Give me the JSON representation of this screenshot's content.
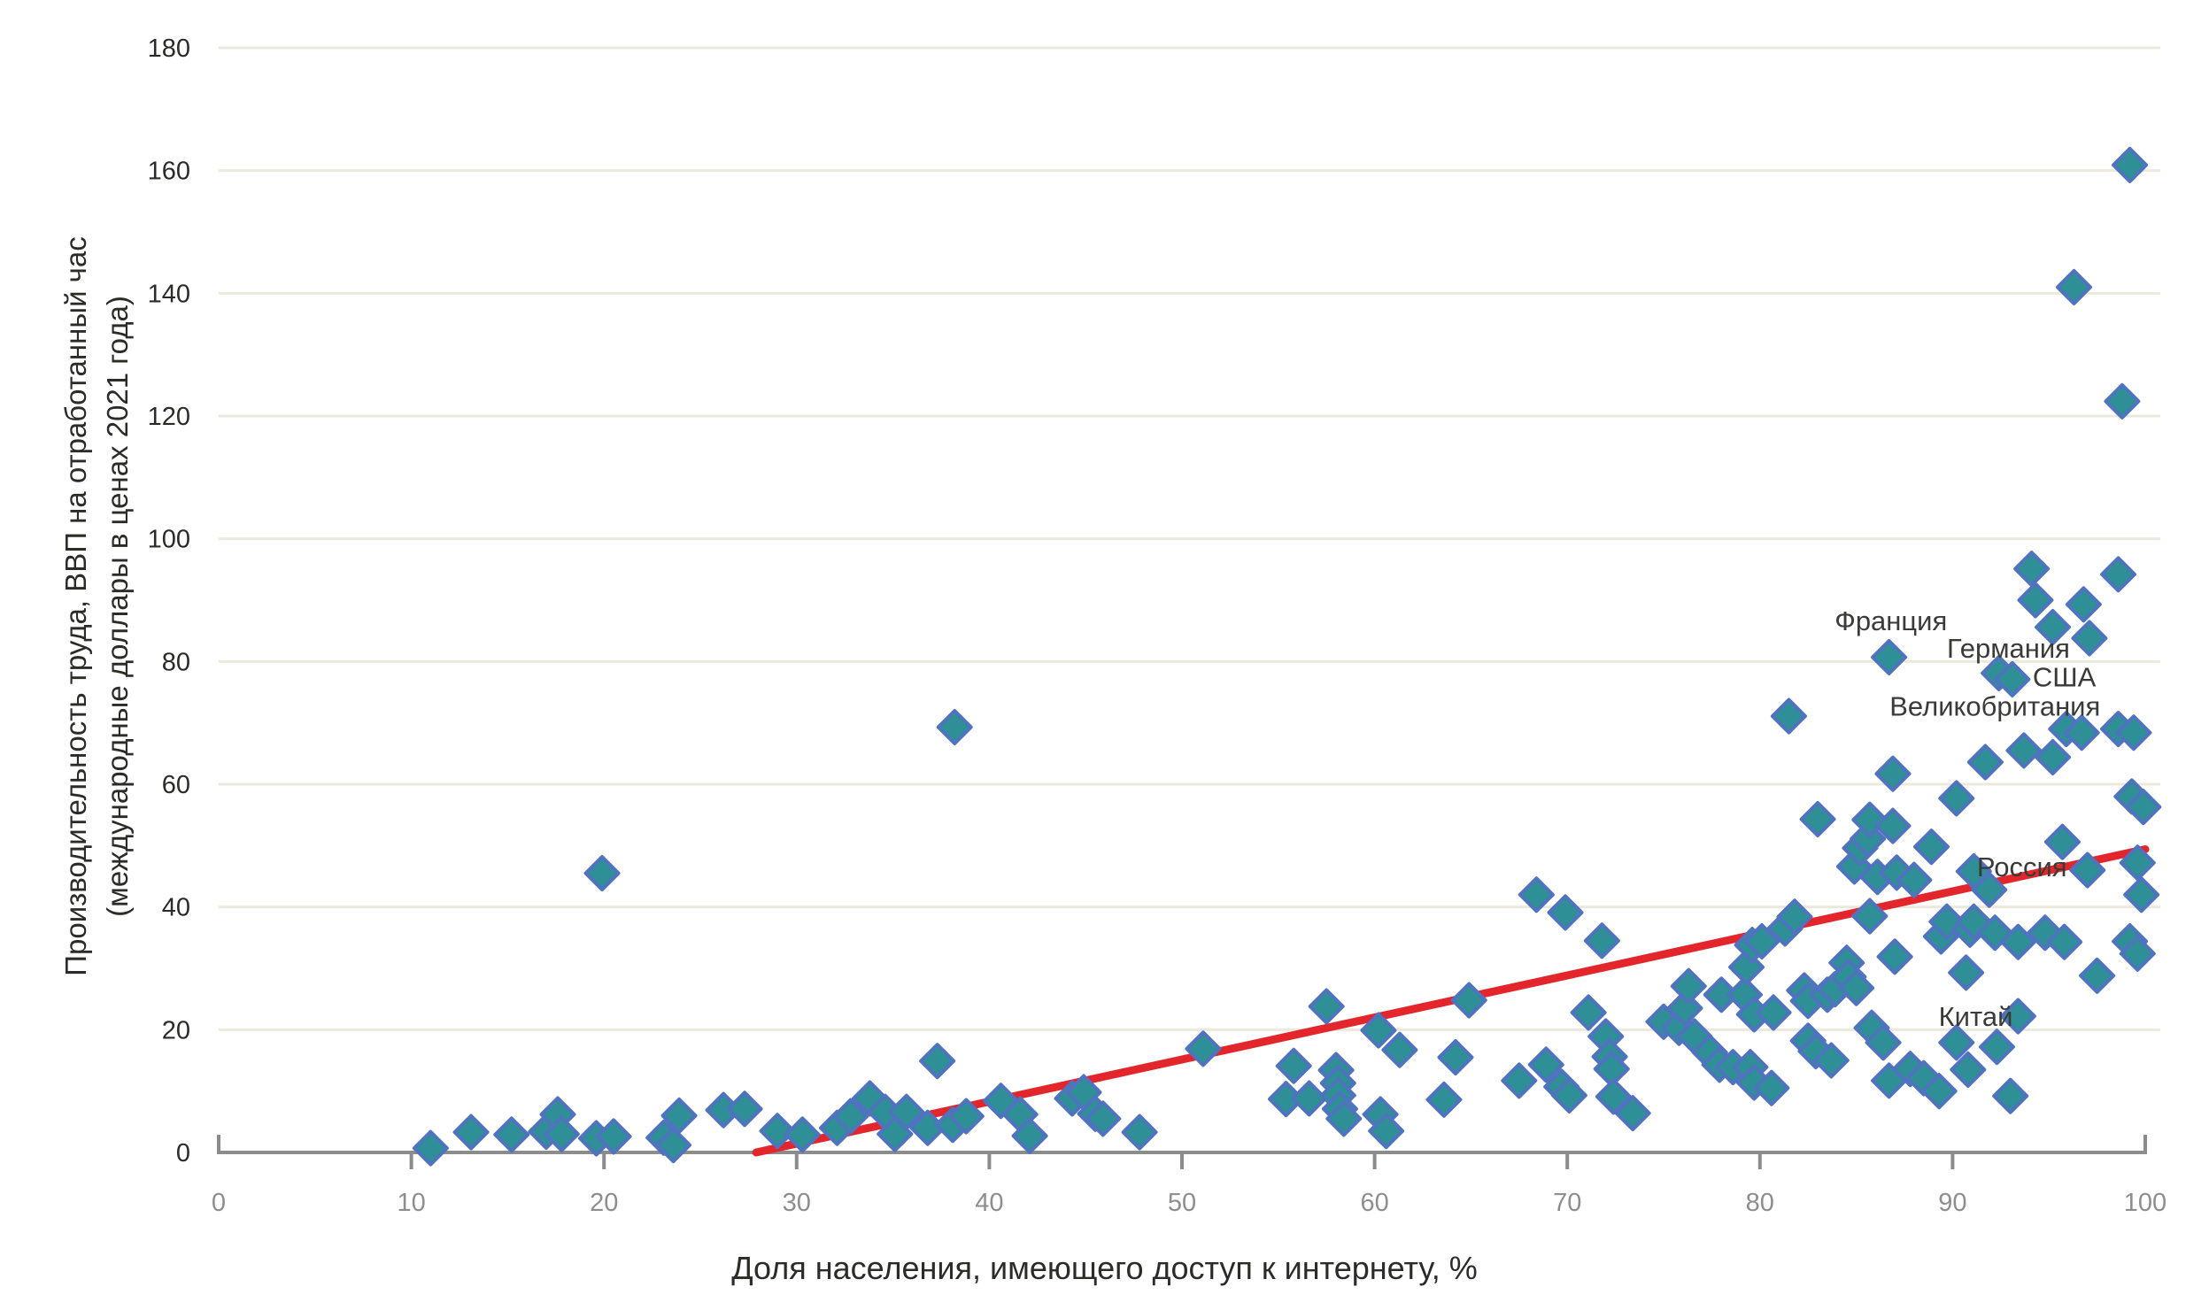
{
  "chart_data": {
    "type": "scatter",
    "title": "",
    "xlabel": "Доля населения, имеющего доступ к интернету, %",
    "ylabel_line1": "Производительность труда, ВВП на отработанный час",
    "ylabel_line2": "(международные доллары в ценах 2021 года)",
    "xlim": [
      0,
      100
    ],
    "ylim": [
      0,
      180
    ],
    "x_ticks": [
      0,
      10,
      20,
      30,
      40,
      50,
      60,
      70,
      80,
      90,
      100
    ],
    "y_ticks": [
      0,
      20,
      40,
      60,
      80,
      100,
      120,
      140,
      160,
      180
    ],
    "grid": "horizontal-only",
    "legend_position": "none",
    "marker": "diamond",
    "colors": {
      "marker_fill": "#2E8F96",
      "marker_stroke": "#4F73BE",
      "trend_line": "#E2262B",
      "grid_line": "#ECE9DC",
      "axis_line": "#8C8C8C",
      "x_tick_label": "#8E8E8E",
      "y_tick_label": "#2B2B28",
      "axis_title": "#2B2B28",
      "annotation_text": "#3A3A36",
      "background": "#FFFFFF"
    },
    "trendline": {
      "x1": 27.9,
      "y1": 0,
      "x2": 100,
      "y2": 49.4
    },
    "annotations": [
      {
        "label": "Франция",
        "x": 86.8,
        "y": 86.7
      },
      {
        "label": "Германия",
        "x": 92.9,
        "y": 82.2
      },
      {
        "label": "США",
        "x": 95.8,
        "y": 77.5
      },
      {
        "label": "Великобритания",
        "x": 92.2,
        "y": 72.8
      },
      {
        "label": "Россия",
        "x": 93.6,
        "y": 46.6
      },
      {
        "label": "Китай",
        "x": 91.2,
        "y": 22.2
      }
    ],
    "points": [
      [
        11,
        0.7
      ],
      [
        13.1,
        3.3
      ],
      [
        15.2,
        2.9
      ],
      [
        17,
        3.4
      ],
      [
        17.6,
        6.2
      ],
      [
        17.8,
        3
      ],
      [
        19.6,
        2.3
      ],
      [
        20.5,
        2.6
      ],
      [
        19.9,
        45.5
      ],
      [
        23.1,
        2.4
      ],
      [
        23.6,
        1.2
      ],
      [
        23.9,
        6
      ],
      [
        26.2,
        6.9
      ],
      [
        27.3,
        7.1
      ],
      [
        29,
        3.5
      ],
      [
        30.3,
        2.9
      ],
      [
        32.1,
        4
      ],
      [
        32.8,
        5.9
      ],
      [
        33.8,
        8.8
      ],
      [
        34.6,
        6.6
      ],
      [
        35.1,
        3
      ],
      [
        35.7,
        6.6
      ],
      [
        36.8,
        4
      ],
      [
        37.3,
        14.9
      ],
      [
        38.1,
        4.5
      ],
      [
        38.2,
        69.3
      ],
      [
        38.8,
        5.9
      ],
      [
        40.6,
        8.4
      ],
      [
        41.6,
        6.2
      ],
      [
        42.1,
        2.7
      ],
      [
        44.3,
        8.8
      ],
      [
        44.9,
        9.8
      ],
      [
        45.5,
        6.3
      ],
      [
        45.9,
        5.5
      ],
      [
        47.8,
        3.3
      ],
      [
        51.1,
        16.9
      ],
      [
        55.4,
        8.7
      ],
      [
        55.8,
        14.1
      ],
      [
        56.6,
        8.8
      ],
      [
        57.5,
        23.8
      ],
      [
        58,
        13.4
      ],
      [
        58.1,
        11.3
      ],
      [
        58.1,
        9.3
      ],
      [
        58.2,
        7.1
      ],
      [
        58.4,
        5.5
      ],
      [
        60.2,
        19.9
      ],
      [
        60.3,
        6.2
      ],
      [
        60.6,
        3.5
      ],
      [
        61.3,
        16.7
      ],
      [
        63.6,
        8.6
      ],
      [
        64.2,
        15.5
      ],
      [
        64.9,
        24.8
      ],
      [
        67.5,
        11.7
      ],
      [
        68.4,
        42
      ],
      [
        68.9,
        14.3
      ],
      [
        69.7,
        10.7
      ],
      [
        69.9,
        39.1
      ],
      [
        70.1,
        9.3
      ],
      [
        71.1,
        22.8
      ],
      [
        71.8,
        34.5
      ],
      [
        72,
        18.9
      ],
      [
        72.2,
        15.6
      ],
      [
        72.3,
        13.6
      ],
      [
        72.4,
        9.1
      ],
      [
        73.4,
        6.4
      ],
      [
        75,
        21.3
      ],
      [
        75.8,
        20.3
      ],
      [
        76.1,
        23.5
      ],
      [
        76.3,
        27.1
      ],
      [
        76.6,
        18.9
      ],
      [
        77.4,
        16.3
      ],
      [
        77.9,
        14.3
      ],
      [
        78,
        25.7
      ],
      [
        78.6,
        13.9
      ],
      [
        79.2,
        25.7
      ],
      [
        79.3,
        30.2
      ],
      [
        79.5,
        13.9
      ],
      [
        79.6,
        33.8
      ],
      [
        79.7,
        22.5
      ],
      [
        79.7,
        11.4
      ],
      [
        80.1,
        34.4
      ],
      [
        80.6,
        10.5
      ],
      [
        80.7,
        22.8
      ],
      [
        81.3,
        36.5
      ],
      [
        81.5,
        71.1
      ],
      [
        81.8,
        38.4
      ],
      [
        82.3,
        26.4
      ],
      [
        82.5,
        24.7
      ],
      [
        82.5,
        18.2
      ],
      [
        82.9,
        16.5
      ],
      [
        83,
        54.3
      ],
      [
        83.5,
        25.7
      ],
      [
        83.7,
        15
      ],
      [
        83.9,
        26.6
      ],
      [
        84.5,
        30.9
      ],
      [
        84.6,
        28.6
      ],
      [
        84.9,
        46.6
      ],
      [
        85,
        26.8
      ],
      [
        85.2,
        49.6
      ],
      [
        85.6,
        51.1
      ],
      [
        85.7,
        54.2
      ],
      [
        85.7,
        38.5
      ],
      [
        85.8,
        20.3
      ],
      [
        86.1,
        44.9
      ],
      [
        86.4,
        17.9
      ],
      [
        86.7,
        11.7
      ],
      [
        86.7,
        80.7
      ],
      [
        86.9,
        61.7
      ],
      [
        86.9,
        53.2
      ],
      [
        87,
        31.9
      ],
      [
        87.1,
        45.6
      ],
      [
        87.8,
        13.6
      ],
      [
        88,
        44.4
      ],
      [
        88.5,
        12.1
      ],
      [
        88.9,
        49.8
      ],
      [
        89.3,
        10
      ],
      [
        89.4,
        35.2
      ],
      [
        89.7,
        37.6
      ],
      [
        90.2,
        57.7
      ],
      [
        90.2,
        17.9
      ],
      [
        90.7,
        29.3
      ],
      [
        90.8,
        13.5
      ],
      [
        90.9,
        36.3
      ],
      [
        91.1,
        37.6
      ],
      [
        91.1,
        45.8
      ],
      [
        91.7,
        63.6
      ],
      [
        91.9,
        42.8
      ],
      [
        92.2,
        35.8
      ],
      [
        92.3,
        17.2
      ],
      [
        92.4,
        78.1
      ],
      [
        93,
        9.2
      ],
      [
        93.1,
        77.1
      ],
      [
        93.4,
        34.3
      ],
      [
        93.4,
        22.2
      ],
      [
        93.7,
        65.5
      ],
      [
        94.1,
        95.1
      ],
      [
        94.3,
        90
      ],
      [
        94.8,
        35.8
      ],
      [
        95.2,
        85.6
      ],
      [
        95.2,
        64.4
      ],
      [
        95.7,
        50.6
      ],
      [
        95.8,
        34.3
      ],
      [
        95.9,
        69
      ],
      [
        96.3,
        141
      ],
      [
        96.7,
        68.4
      ],
      [
        96.8,
        89.3
      ],
      [
        97,
        46
      ],
      [
        97.1,
        83.8
      ],
      [
        97.5,
        28.8
      ],
      [
        98.6,
        94.2
      ],
      [
        98.6,
        69
      ],
      [
        98.8,
        122.4
      ],
      [
        99.2,
        160.9
      ],
      [
        99.2,
        34.4
      ],
      [
        99.3,
        58
      ],
      [
        99.4,
        68.4
      ],
      [
        99.6,
        47.2
      ],
      [
        99.6,
        32.4
      ],
      [
        99.8,
        42
      ],
      [
        99.9,
        56.3
      ]
    ]
  }
}
